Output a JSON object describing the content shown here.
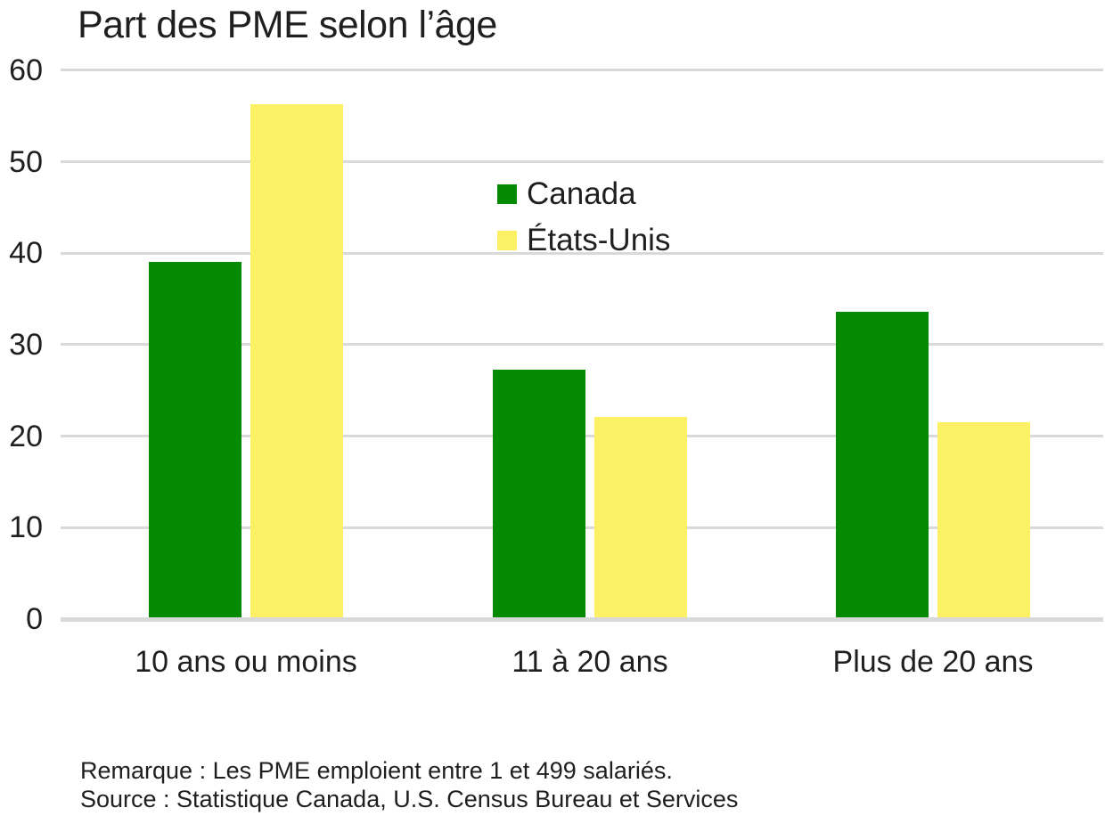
{
  "chart_data": {
    "type": "bar",
    "title": "Part des PME selon l’âge",
    "categories": [
      "10 ans ou moins",
      "11 à 20 ans",
      "Plus de 20 ans"
    ],
    "series": [
      {
        "name": "Canada",
        "color": "#048A00",
        "values": [
          39.0,
          27.3,
          33.6
        ]
      },
      {
        "name": "États-Unis",
        "color": "#FCF164",
        "values": [
          56.3,
          22.1,
          21.5
        ]
      }
    ],
    "xlabel": "",
    "ylabel": "",
    "ylim": [
      0,
      60
    ],
    "yticks": [
      0,
      10,
      20,
      30,
      40,
      50,
      60
    ],
    "grid": true,
    "gridline_color": "#D9D9D9",
    "text_color": "#1f1f1f",
    "background_color": "#FFFFFF",
    "legend_position": "inside-top-center",
    "note": "Remarque : Les PME emploient entre 1 et 499 salariés.",
    "source": "Source : Statistique Canada, U.S. Census Bureau et Services"
  }
}
